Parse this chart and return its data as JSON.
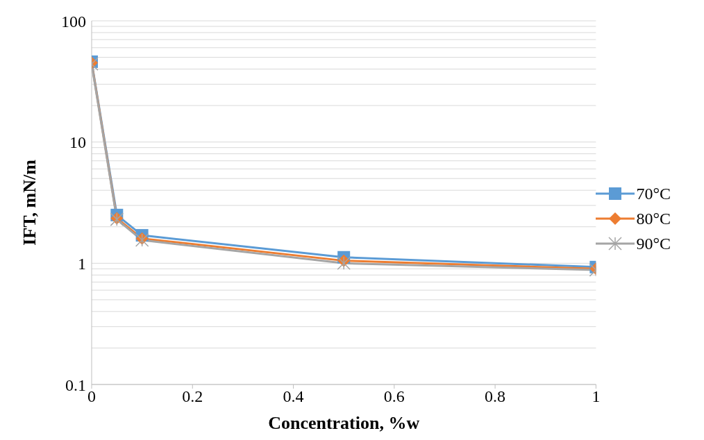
{
  "chart_data": {
    "type": "line",
    "xlabel": "Concentration, %w",
    "ylabel": "IFT, mN/m",
    "x": [
      0,
      0.05,
      0.1,
      0.5,
      1
    ],
    "series": [
      {
        "name": "70°C",
        "color": "#5b9bd5",
        "marker": "square",
        "values": [
          46,
          2.5,
          1.7,
          1.12,
          0.93
        ]
      },
      {
        "name": "80°C",
        "color": "#ed7d31",
        "marker": "diamond",
        "values": [
          45,
          2.35,
          1.6,
          1.05,
          0.9
        ]
      },
      {
        "name": "90°C",
        "color": "#a5a5a5",
        "marker": "cross",
        "values": [
          44,
          2.3,
          1.55,
          1.0,
          0.88
        ]
      }
    ],
    "xlim": [
      0,
      1
    ],
    "xticks": [
      0,
      0.2,
      0.4,
      0.6,
      0.8,
      1
    ],
    "log": "y",
    "ylim": [
      0.1,
      100
    ],
    "yticks": [
      0.1,
      {
        "value": 0.2,
        "label": null
      },
      {
        "value": 0.3,
        "label": null
      },
      {
        "value": 0.4,
        "label": null
      },
      {
        "value": 0.5,
        "label": null
      },
      {
        "value": 0.6,
        "label": null
      },
      {
        "value": 0.7,
        "label": null
      },
      {
        "value": 0.8,
        "label": null
      },
      {
        "value": 0.9,
        "label": null
      },
      1,
      {
        "value": 2,
        "label": null
      },
      {
        "value": 3,
        "label": null
      },
      {
        "value": 4,
        "label": null
      },
      {
        "value": 5,
        "label": null
      },
      {
        "value": 6,
        "label": null
      },
      {
        "value": 7,
        "label": null
      },
      {
        "value": 8,
        "label": null
      },
      {
        "value": 9,
        "label": null
      },
      10,
      {
        "value": 20,
        "label": null
      },
      {
        "value": 30,
        "label": null
      },
      {
        "value": 40,
        "label": null
      },
      {
        "value": 50,
        "label": null
      },
      {
        "value": 60,
        "label": null
      },
      {
        "value": 70,
        "label": null
      },
      {
        "value": 80,
        "label": null
      },
      {
        "value": 90,
        "label": null
      },
      100
    ],
    "grid": "y",
    "legend": "right"
  }
}
